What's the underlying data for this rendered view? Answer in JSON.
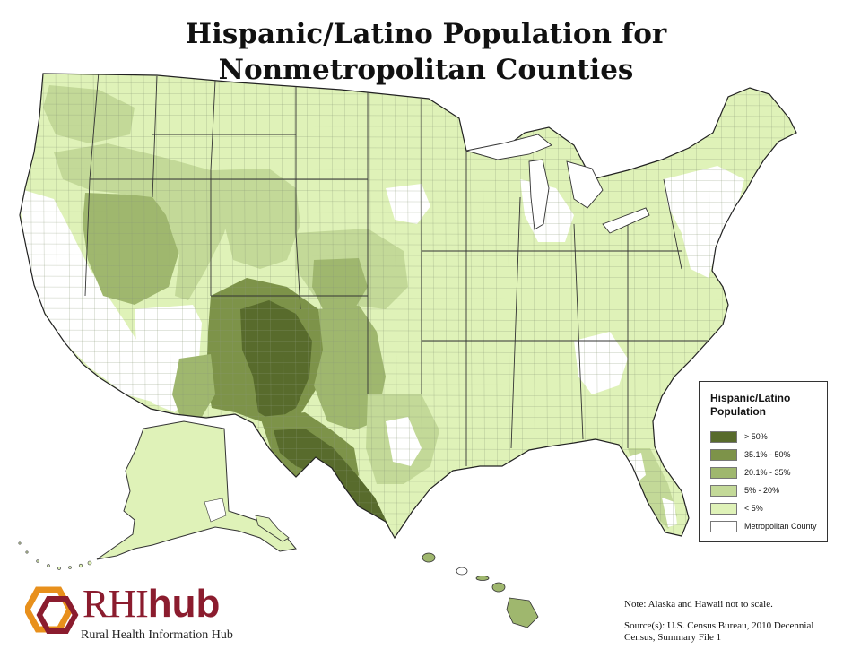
{
  "title": {
    "line1": "Hispanic/Latino Population for",
    "line2": "Nonmetropolitan Counties"
  },
  "legend": {
    "title": "Hispanic/Latino Population",
    "items": [
      {
        "label": "> 50%",
        "color": "#586b2c"
      },
      {
        "label": "35.1% - 50%",
        "color": "#7d9349"
      },
      {
        "label": "20.1% - 35%",
        "color": "#9fb76e"
      },
      {
        "label": "5% - 20%",
        "color": "#c3d998"
      },
      {
        "label": "< 5%",
        "color": "#dff2b8"
      },
      {
        "label": "Metropolitan County",
        "color": "#ffffff"
      }
    ]
  },
  "logo": {
    "name_part1": "RHI",
    "name_part2": "hub",
    "subtitle": "Rural Health Information Hub",
    "colors": {
      "orange": "#e8901c",
      "maroon": "#8b1c2e"
    }
  },
  "note": "Note: Alaska and Hawaii not to scale.",
  "source": "Source(s): U.S. Census Bureau, 2010 Decennial Census, Summary File 1"
}
